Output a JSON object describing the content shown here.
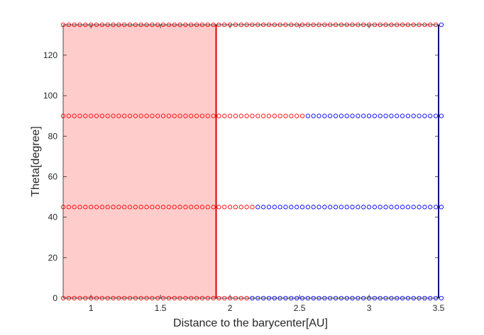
{
  "chart_data": {
    "type": "scatter",
    "title": "",
    "xlabel": "Distance to the barycenter[AU]",
    "ylabel": "Theta[degree]",
    "xlim": [
      0.8,
      3.5
    ],
    "ylim": [
      0,
      135
    ],
    "x_ticks": [
      "1",
      "1.5",
      "2",
      "2.5",
      "3",
      "3.5"
    ],
    "y_ticks": [
      "0",
      "20",
      "40",
      "60",
      "80",
      "100",
      "120"
    ],
    "grid": false,
    "legend": "none",
    "marker": "open-circle",
    "x_step": 0.04,
    "shaded_region": {
      "x_from": 0.8,
      "x_to": 1.9,
      "color": "#ffcccc"
    },
    "vertical_lines": [
      {
        "x": 1.9,
        "color": "#dd0000"
      },
      {
        "x": 3.5,
        "color": "#0000bb"
      }
    ],
    "rows": [
      {
        "theta": 0,
        "red_until": 2.12
      },
      {
        "theta": 45,
        "red_until": 2.16
      },
      {
        "theta": 90,
        "red_until": 2.52
      },
      {
        "theta": 135,
        "red_until": 3.5
      }
    ],
    "series_colors": {
      "red": "#ff0000",
      "blue": "#0000ff"
    }
  }
}
